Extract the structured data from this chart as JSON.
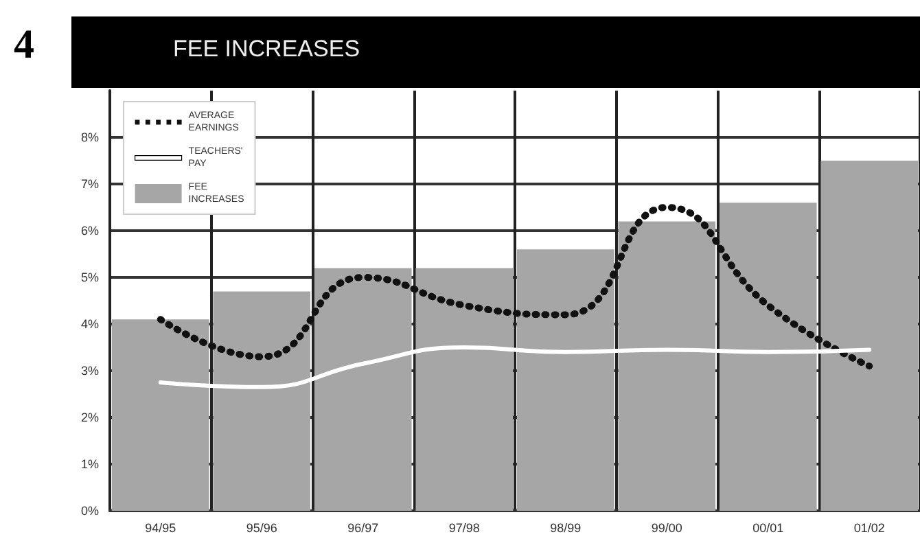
{
  "chart_data": {
    "type": "bar",
    "title": "FEE INCREASES",
    "annotations": [
      "4"
    ],
    "categories": [
      "94/95",
      "95/96",
      "96/97",
      "97/98",
      "98/99",
      "99/00",
      "00/01",
      "01/02"
    ],
    "series": [
      {
        "name": "FEE INCREASES",
        "color": "#a6a6a6",
        "values": [
          4.1,
          4.7,
          5.2,
          5.2,
          5.6,
          6.2,
          6.6,
          7.5
        ]
      },
      {
        "name": "AVERAGE EARNINGS",
        "type": "line",
        "color": "#111111",
        "line_style": "dotted",
        "values": [
          4.1,
          3.3,
          5.0,
          4.4,
          4.2,
          6.5,
          4.4,
          3.1
        ]
      },
      {
        "name": "TEACHERS' PAY",
        "type": "line",
        "color": "#ffffff",
        "line_style": "solid",
        "values": [
          2.75,
          2.65,
          3.15,
          3.5,
          3.4,
          3.45,
          3.4,
          3.45
        ]
      }
    ],
    "ylim": [
      0,
      9
    ],
    "yticks": [
      {
        "value": 0,
        "label": "0%"
      },
      {
        "value": 1,
        "label": "1%"
      },
      {
        "value": 2,
        "label": "2%"
      },
      {
        "value": 3,
        "label": "3%"
      },
      {
        "value": 4,
        "label": "4%"
      },
      {
        "value": 5,
        "label": "5%"
      },
      {
        "value": 6,
        "label": "6%"
      },
      {
        "value": 7,
        "label": "7%"
      },
      {
        "value": 8,
        "label": "8%"
      }
    ],
    "grid": true,
    "legend": "top left"
  }
}
